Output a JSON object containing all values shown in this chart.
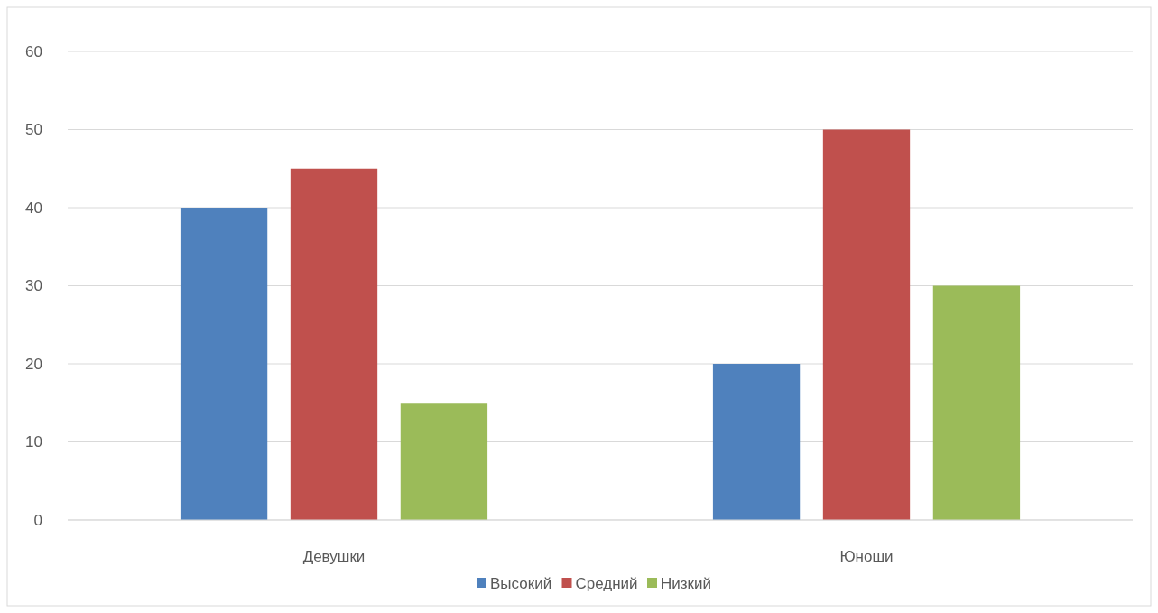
{
  "chart_data": {
    "type": "bar",
    "categories": [
      "Девушки",
      "Юноши"
    ],
    "series": [
      {
        "name": "Высокий",
        "color": "#4f81bd",
        "values": [
          40,
          20
        ]
      },
      {
        "name": "Средний",
        "color": "#c0504d",
        "values": [
          45,
          50
        ]
      },
      {
        "name": "Низкий",
        "color": "#9bbb59",
        "values": [
          15,
          30
        ]
      }
    ],
    "ylim": [
      0,
      60
    ],
    "yticks": [
      0,
      10,
      20,
      30,
      40,
      50,
      60
    ],
    "grid": "y",
    "legend": "bottom"
  }
}
